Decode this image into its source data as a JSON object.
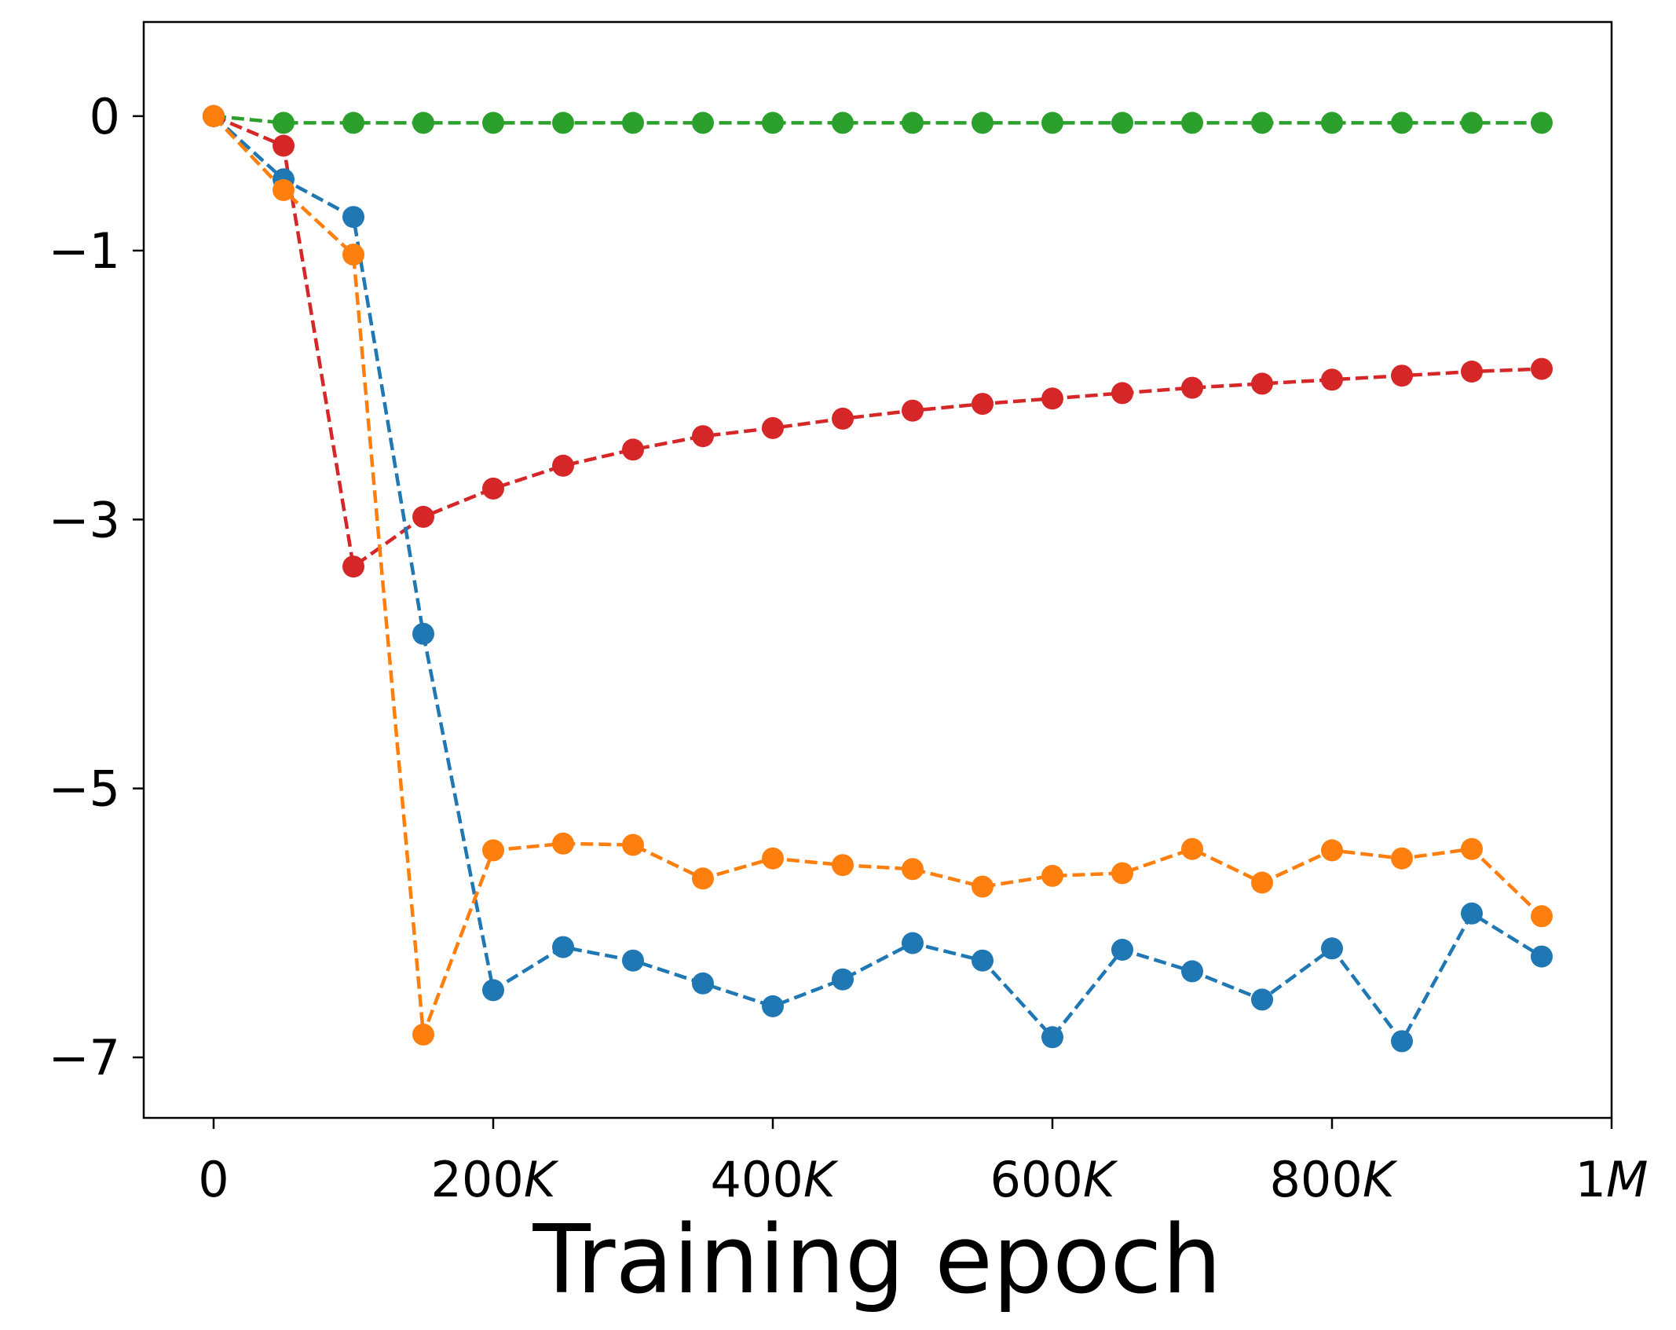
{
  "chart_data": {
    "type": "line",
    "xlabel": "Training epoch",
    "ylabel": "",
    "xlim": [
      -50000,
      1000000
    ],
    "ylim": [
      -7.45,
      0.7
    ],
    "x_ticks": [
      {
        "value": 0,
        "label": "0",
        "italic_suffix": ""
      },
      {
        "value": 200000,
        "label": "200",
        "italic_suffix": "K"
      },
      {
        "value": 400000,
        "label": "400",
        "italic_suffix": "K"
      },
      {
        "value": 600000,
        "label": "600",
        "italic_suffix": "K"
      },
      {
        "value": 800000,
        "label": "800",
        "italic_suffix": "K"
      },
      {
        "value": 1000000,
        "label": "1",
        "italic_suffix": "M"
      }
    ],
    "y_ticks": [
      {
        "value": 0,
        "label": "0"
      },
      {
        "value": -1,
        "label": "−1"
      },
      {
        "value": -3,
        "label": "−3"
      },
      {
        "value": -5,
        "label": "−5"
      },
      {
        "value": -7,
        "label": "−7"
      }
    ],
    "x": [
      0,
      50000,
      100000,
      150000,
      200000,
      250000,
      300000,
      350000,
      400000,
      450000,
      500000,
      550000,
      600000,
      650000,
      700000,
      750000,
      800000,
      850000,
      900000,
      950000
    ],
    "series": [
      {
        "color": "#2ca02c",
        "values": [
          0,
          -0.05,
          -0.05,
          -0.05,
          -0.05,
          -0.05,
          -0.05,
          -0.05,
          -0.05,
          -0.05,
          -0.05,
          -0.05,
          -0.05,
          -0.05,
          -0.05,
          -0.05,
          -0.05,
          -0.05,
          -0.05,
          -0.05
        ]
      },
      {
        "color": "#d62728",
        "values": [
          0,
          -0.22,
          -3.35,
          -2.98,
          -2.77,
          -2.6,
          -2.48,
          -2.38,
          -2.32,
          -2.25,
          -2.19,
          -2.14,
          -2.1,
          -2.06,
          -2.02,
          -1.99,
          -1.96,
          -1.93,
          -1.9,
          -1.88
        ]
      },
      {
        "color": "#1f77b4",
        "values": [
          0,
          -0.47,
          -0.75,
          -3.85,
          -6.5,
          -6.18,
          -6.28,
          -6.45,
          -6.62,
          -6.42,
          -6.15,
          -6.28,
          -6.85,
          -6.2,
          -6.36,
          -6.57,
          -6.19,
          -6.88,
          -5.93,
          -6.25
        ]
      },
      {
        "color": "#ff7f0e",
        "values": [
          0,
          -0.55,
          -1.03,
          -6.83,
          -5.46,
          -5.41,
          -5.42,
          -5.67,
          -5.52,
          -5.57,
          -5.6,
          -5.73,
          -5.65,
          -5.63,
          -5.45,
          -5.7,
          -5.46,
          -5.52,
          -5.45,
          -5.95
        ]
      }
    ]
  }
}
